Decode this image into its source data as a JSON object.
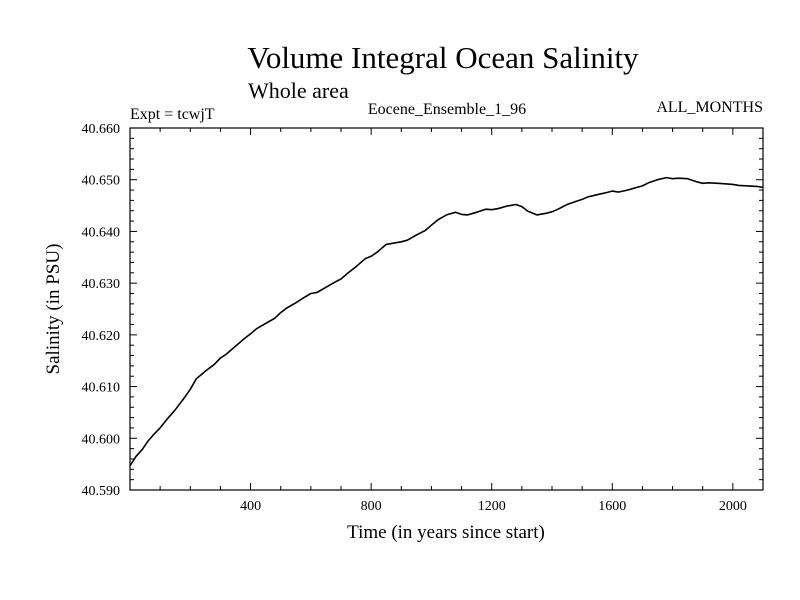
{
  "chart_data": {
    "type": "line",
    "title": "Volume Integral Ocean Salinity",
    "subtitle": "Whole area",
    "annotations": {
      "left": "Expt = tcwjT",
      "center": "Eocene_Ensemble_1_96",
      "right": "ALL_MONTHS"
    },
    "xlabel": "Time (in years since start)",
    "ylabel": "Salinity (in PSU)",
    "xlim": [
      0,
      2100
    ],
    "ylim": [
      40.59,
      40.66
    ],
    "x_ticks": [
      400,
      800,
      1200,
      1600,
      2000
    ],
    "x_tick_labels": [
      "400",
      "800",
      "1200",
      "1600",
      "2000"
    ],
    "y_ticks": [
      40.59,
      40.6,
      40.61,
      40.62,
      40.63,
      40.64,
      40.65,
      40.66
    ],
    "y_tick_labels": [
      "40.590",
      "40.600",
      "40.610",
      "40.620",
      "40.630",
      "40.640",
      "40.650",
      "40.660"
    ],
    "grid": false,
    "line_color": "#000000",
    "series": [
      {
        "x": [
          0,
          20,
          40,
          60,
          80,
          100,
          120,
          150,
          180,
          200,
          220,
          250,
          280,
          300,
          320,
          350,
          380,
          400,
          420,
          450,
          480,
          500,
          520,
          550,
          580,
          600,
          620,
          650,
          680,
          700,
          720,
          750,
          780,
          800,
          820,
          850,
          880,
          900,
          920,
          950,
          980,
          1000,
          1020,
          1050,
          1080,
          1100,
          1120,
          1150,
          1180,
          1200,
          1220,
          1250,
          1280,
          1300,
          1320,
          1350,
          1380,
          1400,
          1420,
          1450,
          1480,
          1500,
          1520,
          1550,
          1580,
          1600,
          1620,
          1650,
          1680,
          1700,
          1720,
          1750,
          1780,
          1800,
          1820,
          1850,
          1880,
          1900,
          1920,
          1950,
          1980,
          2000,
          2020,
          2050,
          2080,
          2100
        ],
        "values": [
          40.5947,
          40.5965,
          40.5978,
          40.5995,
          40.6008,
          40.602,
          40.6035,
          40.6055,
          40.6078,
          40.6095,
          40.6115,
          40.613,
          40.6143,
          40.6155,
          40.6163,
          40.6178,
          40.6193,
          40.6202,
          40.6212,
          40.6222,
          40.6232,
          40.6243,
          40.6252,
          40.6262,
          40.6273,
          40.628,
          40.6282,
          40.6292,
          40.6302,
          40.6308,
          40.6318,
          40.6332,
          40.6347,
          40.6352,
          40.636,
          40.6375,
          40.6378,
          40.638,
          40.6383,
          40.6393,
          40.6402,
          40.6412,
          40.6422,
          40.6432,
          40.6437,
          40.6433,
          40.6432,
          40.6437,
          40.6443,
          40.6442,
          40.6444,
          40.6449,
          40.6452,
          40.6448,
          40.6439,
          40.6432,
          40.6435,
          40.6438,
          40.6443,
          40.6452,
          40.6458,
          40.6462,
          40.6467,
          40.6471,
          40.6475,
          40.6478,
          40.6476,
          40.648,
          40.6485,
          40.6488,
          40.6494,
          40.65,
          40.6504,
          40.6502,
          40.6503,
          40.6502,
          40.6496,
          40.6493,
          40.6494,
          40.6493,
          40.6492,
          40.6491,
          40.6489,
          40.6488,
          40.6487,
          40.6485
        ]
      }
    ]
  }
}
